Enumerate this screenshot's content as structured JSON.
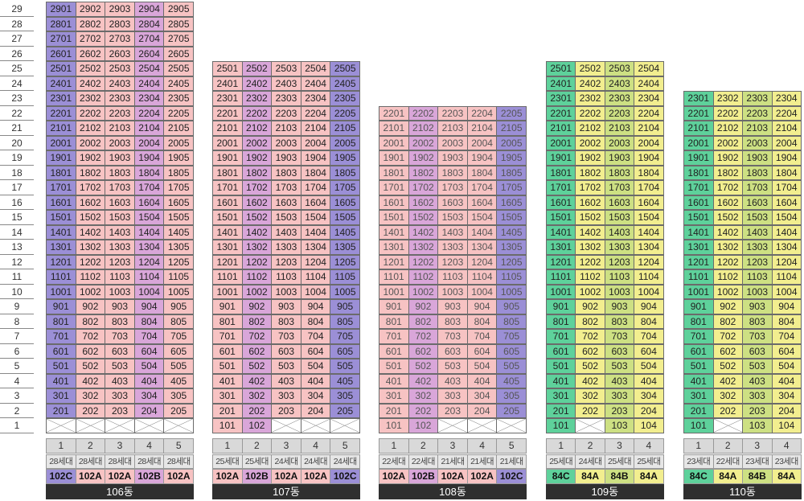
{
  "floors": [
    "29",
    "28",
    "27",
    "26",
    "25",
    "24",
    "23",
    "22",
    "21",
    "20",
    "19",
    "18",
    "17",
    "16",
    "15",
    "14",
    "13",
    "12",
    "11",
    "10",
    "9",
    "8",
    "7",
    "6",
    "5",
    "4",
    "3",
    "2",
    "1"
  ],
  "colors": {
    "102A": "#f7c3c3",
    "102B": "#d9a6d9",
    "102C": "#9b8fd6",
    "84A": "#f2ee8f",
    "84B": "#cde083",
    "84C": "#5ed19b",
    "empty": "#ffffff"
  },
  "buildings": [
    {
      "name": "106동",
      "top_floor": 29,
      "faded": false,
      "lines": [
        {
          "num": "1",
          "households": "28세대",
          "type": "102C",
          "first_unit": ""
        },
        {
          "num": "2",
          "households": "28세대",
          "type": "102A",
          "first_unit": ""
        },
        {
          "num": "3",
          "households": "28세대",
          "type": "102A",
          "first_unit": ""
        },
        {
          "num": "4",
          "households": "28세대",
          "type": "102B",
          "first_unit": ""
        },
        {
          "num": "5",
          "households": "28세대",
          "type": "102A",
          "first_unit": ""
        }
      ]
    },
    {
      "name": "107동",
      "top_floor": 25,
      "faded": false,
      "lines": [
        {
          "num": "1",
          "households": "25세대",
          "type": "102A",
          "first_unit": "101"
        },
        {
          "num": "2",
          "households": "25세대",
          "type": "102B",
          "first_unit": "102"
        },
        {
          "num": "3",
          "households": "24세대",
          "type": "102A",
          "first_unit": ""
        },
        {
          "num": "4",
          "households": "24세대",
          "type": "102A",
          "first_unit": ""
        },
        {
          "num": "5",
          "households": "24세대",
          "type": "102C",
          "first_unit": ""
        }
      ]
    },
    {
      "name": "108동",
      "top_floor": 22,
      "faded": true,
      "lines": [
        {
          "num": "1",
          "households": "22세대",
          "type": "102A",
          "first_unit": "101"
        },
        {
          "num": "2",
          "households": "22세대",
          "type": "102B",
          "first_unit": "102"
        },
        {
          "num": "3",
          "households": "21세대",
          "type": "102A",
          "first_unit": ""
        },
        {
          "num": "4",
          "households": "21세대",
          "type": "102A",
          "first_unit": ""
        },
        {
          "num": "5",
          "households": "21세대",
          "type": "102C",
          "first_unit": ""
        }
      ]
    },
    {
      "name": "109동",
      "top_floor": 25,
      "faded": false,
      "lines": [
        {
          "num": "1",
          "households": "25세대",
          "type": "84C",
          "first_unit": "101"
        },
        {
          "num": "2",
          "households": "24세대",
          "type": "84A",
          "first_unit": ""
        },
        {
          "num": "3",
          "households": "25세대",
          "type": "84B",
          "first_unit": "103"
        },
        {
          "num": "4",
          "households": "25세대",
          "type": "84A",
          "first_unit": "104"
        }
      ]
    },
    {
      "name": "110동",
      "top_floor": 23,
      "faded": false,
      "lines": [
        {
          "num": "1",
          "households": "23세대",
          "type": "84C",
          "first_unit": "101"
        },
        {
          "num": "2",
          "households": "22세대",
          "type": "84A",
          "first_unit": ""
        },
        {
          "num": "3",
          "households": "23세대",
          "type": "84B",
          "first_unit": "103"
        },
        {
          "num": "4",
          "households": "23세대",
          "type": "84A",
          "first_unit": "104"
        }
      ]
    }
  ]
}
